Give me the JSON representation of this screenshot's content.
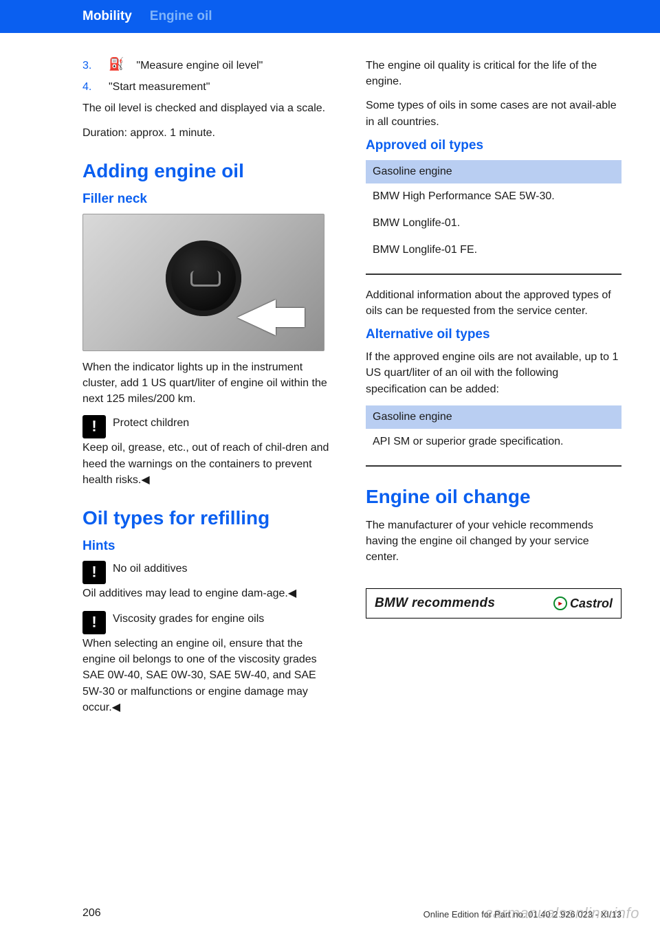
{
  "header": {
    "section": "Mobility",
    "topic": "Engine oil"
  },
  "left": {
    "steps": [
      {
        "n": "3.",
        "icon": "⛽",
        "label": "\"Measure engine oil level\""
      },
      {
        "n": "4.",
        "icon": "",
        "label": "\"Start measurement\""
      }
    ],
    "intro1": "The oil level is checked and displayed via a scale.",
    "intro2": "Duration: approx. 1 minute.",
    "h_add": "Adding engine oil",
    "h_filler": "Filler neck",
    "filler_body": "When the indicator lights up in the instrument cluster, add 1 US quart/liter of engine oil within the next 125 miles/200 km.",
    "warn1_title": "Protect children",
    "warn1_body": "Keep oil, grease, etc., out of reach of chil‐dren and heed the warnings on the containers to prevent health risks.◀",
    "h_refill": "Oil types for refilling",
    "h_hints": "Hints",
    "warn2_title": "No oil additives",
    "warn2_body": "Oil additives may lead to engine dam‐age.◀",
    "warn3_title": "Viscosity grades for engine oils",
    "warn3_body": "When selecting an engine oil, ensure that the engine oil belongs to one of the viscosity grades SAE 0W-40, SAE 0W-30, SAE 5W-40, and SAE 5W-30 or malfunctions or engine damage may occur.◀"
  },
  "right": {
    "p1": "The engine oil quality is critical for the life of the engine.",
    "p2": "Some types of oils in some cases are not avail‐able in all countries.",
    "h_approved": "Approved oil types",
    "tbl1": {
      "header": "Gasoline engine",
      "rows": [
        "BMW High Performance SAE 5W-30.",
        "BMW Longlife-01.",
        "BMW Longlife-01 FE."
      ]
    },
    "p3": "Additional information about the approved types of oils can be requested from the service center.",
    "h_alt": "Alternative oil types",
    "p4": "If the approved engine oils are not available, up to 1 US quart/liter of an oil with the following specification can be added:",
    "tbl2": {
      "header": "Gasoline engine",
      "rows": [
        "API SM or superior grade specification."
      ]
    },
    "h_change": "Engine oil change",
    "p5": "The manufacturer of your vehicle recommends having the engine oil changed by your service center.",
    "recommend_text": "BMW recommends",
    "recommend_brand": "Castrol"
  },
  "footer": {
    "page": "206",
    "line": "Online Edition for Part no. 01 40 2 926 023 - XI/13",
    "watermark": "carmanualsonline.info"
  }
}
